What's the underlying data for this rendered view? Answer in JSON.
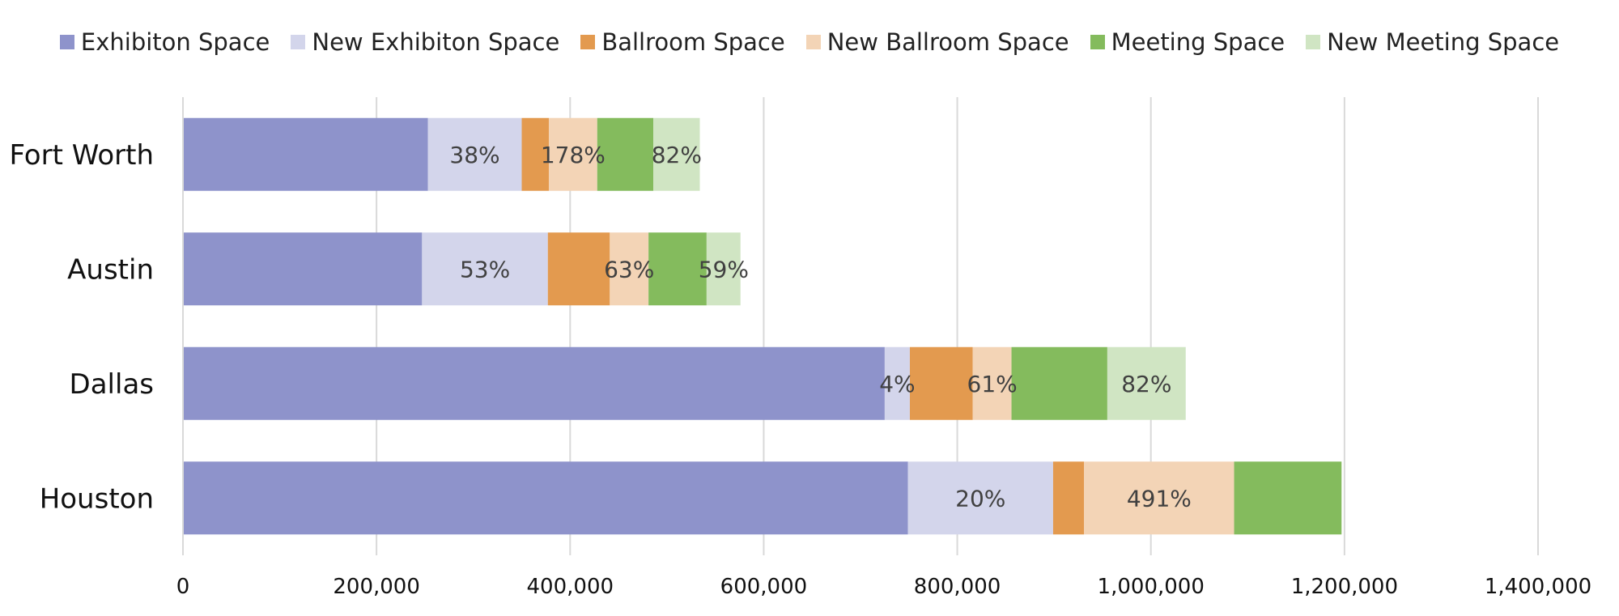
{
  "chart_data": {
    "type": "bar",
    "orientation": "horizontal",
    "stacked": true,
    "categories": [
      "Fort Worth",
      "Austin",
      "Dallas",
      "Houston"
    ],
    "series": [
      {
        "name": "Exhibiton Space",
        "color": "#8e93cb",
        "values": [
          253000,
          247000,
          725000,
          749000
        ]
      },
      {
        "name": "New Exhibiton Space",
        "color": "#d3d5eb",
        "values": [
          97000,
          130000,
          26000,
          150000
        ],
        "labels": [
          "38%",
          "53%",
          "4%",
          "20%"
        ]
      },
      {
        "name": "Ballroom Space",
        "color": "#e39a4f",
        "values": [
          28000,
          64000,
          65000,
          32000
        ]
      },
      {
        "name": "New Ballroom Space",
        "color": "#f3d4b6",
        "values": [
          50000,
          40000,
          40000,
          155000
        ],
        "labels": [
          "178%",
          "63%",
          "61%",
          "491%"
        ]
      },
      {
        "name": "Meeting Space",
        "color": "#84bb5d",
        "values": [
          58000,
          60000,
          99000,
          111000
        ]
      },
      {
        "name": "New Meeting Space",
        "color": "#d0e5c3",
        "values": [
          48000,
          35000,
          81000,
          0
        ],
        "labels": [
          "82%",
          "59%",
          "82%",
          ""
        ]
      }
    ],
    "xlim": [
      0,
      1400000
    ],
    "xticks": [
      0,
      200000,
      400000,
      600000,
      800000,
      1000000,
      1200000,
      1400000
    ],
    "xtick_labels": [
      "0",
      "200,000",
      "400,000",
      "600,000",
      "800,000",
      "1,000,000",
      "1,200,000",
      "1,400,000"
    ],
    "grid": "vertical",
    "legend_position": "top",
    "title": "",
    "xlabel": "",
    "ylabel": ""
  }
}
